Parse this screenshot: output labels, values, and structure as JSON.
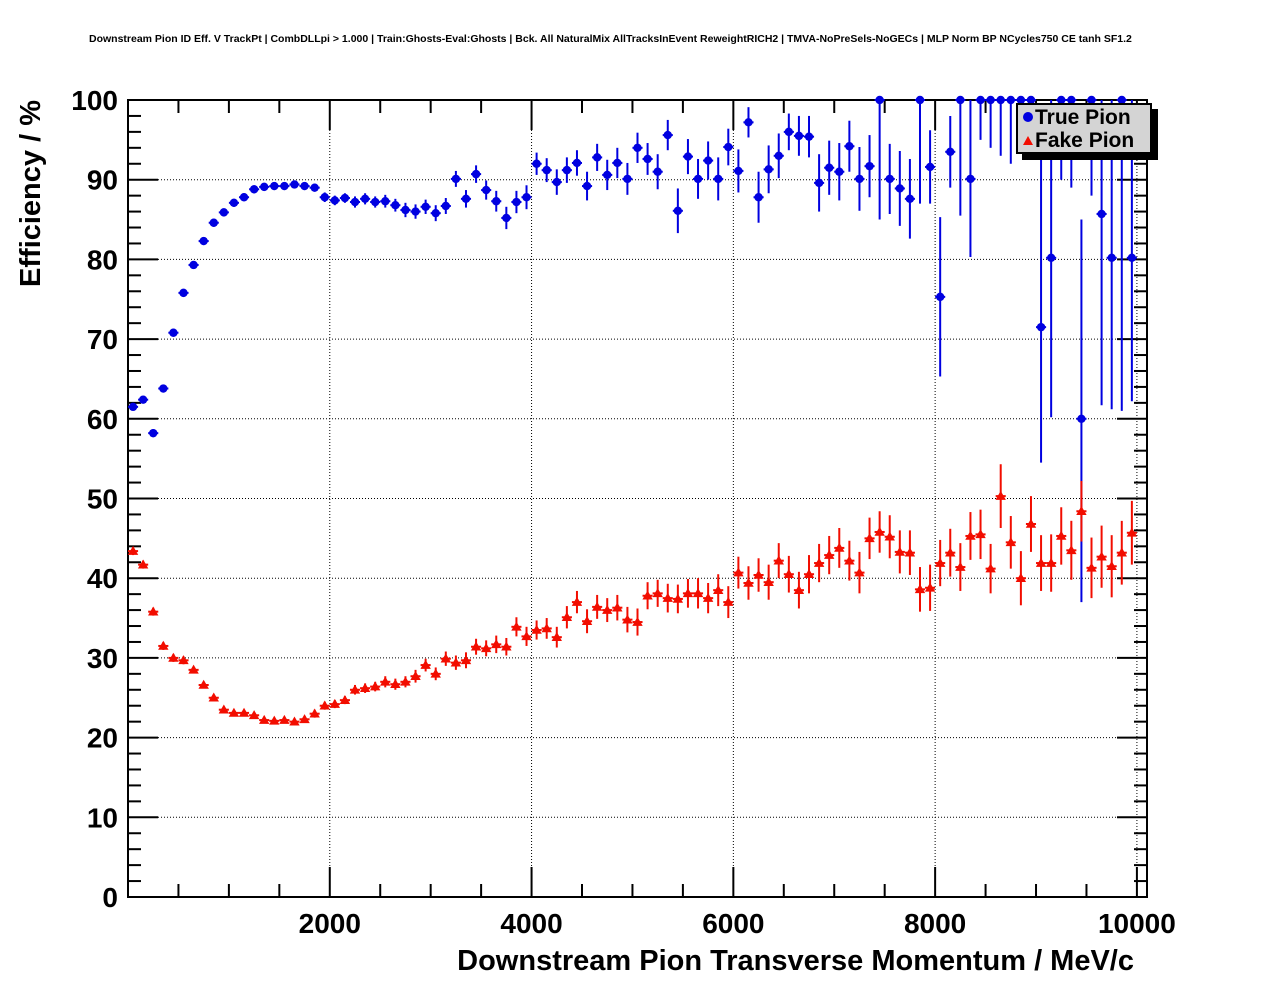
{
  "header": {
    "title": "Downstream Pion ID Eff. V TrackPt | CombDLLpi > 1.000 | Train:Ghosts-Eval:Ghosts | Bck. All NaturalMix AllTracksInEvent ReweightRICH2 | TMVA-NoPreSels-NoGECs | MLP Norm BP NCycles750 CE tanh SF1.2"
  },
  "axes": {
    "x_title": "Downstream Pion Transverse Momentum / MeV/c",
    "y_title": "Efficiency / %"
  },
  "legend": {
    "entries": [
      {
        "label": "True Pion",
        "marker": "circle",
        "color": "#0000e0"
      },
      {
        "label": "Fake Pion",
        "marker": "triangle",
        "color": "#f20d00"
      }
    ]
  },
  "chart_data": {
    "type": "scatter",
    "title": "Downstream Pion ID Eff. V TrackPt | CombDLLpi > 1.000 | Train:Ghosts-Eval:Ghosts | Bck. All NaturalMix AllTracksInEvent ReweightRICH2 | TMVA-NoPreSels-NoGECs | MLP Norm BP NCycles750 CE tanh SF1.2",
    "xlabel": "Downstream Pion Transverse Momentum / MeV/c",
    "ylabel": "Efficiency / %",
    "xlim": [
      0,
      10100
    ],
    "ylim": [
      0,
      100
    ],
    "x_ticks": [
      2000,
      4000,
      6000,
      8000,
      10000
    ],
    "y_ticks": [
      0,
      10,
      20,
      30,
      40,
      50,
      60,
      70,
      80,
      90,
      100
    ],
    "x_minor_step": 500,
    "y_minor_step": 2,
    "grid": true,
    "legend_position": "top-right",
    "bin_half_width": 50,
    "marker_note": "points are [pt_MeV, efficiency_pct, err_low, optional err_high]",
    "series": [
      {
        "name": "True Pion",
        "marker": "circle",
        "color": "#0000e0",
        "points": [
          [
            50,
            61.5,
            0.4
          ],
          [
            150,
            62.4,
            0.4
          ],
          [
            250,
            58.2,
            0.5
          ],
          [
            350,
            63.8,
            0.5
          ],
          [
            450,
            70.8,
            0.5
          ],
          [
            550,
            75.8,
            0.5
          ],
          [
            650,
            79.3,
            0.5
          ],
          [
            750,
            82.3,
            0.5
          ],
          [
            850,
            84.6,
            0.5
          ],
          [
            950,
            85.9,
            0.5
          ],
          [
            1050,
            87.1,
            0.5
          ],
          [
            1150,
            87.8,
            0.5
          ],
          [
            1250,
            88.8,
            0.5
          ],
          [
            1350,
            89.1,
            0.5
          ],
          [
            1450,
            89.2,
            0.5
          ],
          [
            1550,
            89.2,
            0.5
          ],
          [
            1650,
            89.4,
            0.5
          ],
          [
            1750,
            89.2,
            0.5
          ],
          [
            1850,
            89.0,
            0.5
          ],
          [
            1950,
            87.8,
            0.6
          ],
          [
            2050,
            87.4,
            0.6
          ],
          [
            2150,
            87.7,
            0.6
          ],
          [
            2250,
            87.2,
            0.7
          ],
          [
            2350,
            87.6,
            0.7
          ],
          [
            2450,
            87.2,
            0.7
          ],
          [
            2550,
            87.3,
            0.8
          ],
          [
            2650,
            86.8,
            0.8
          ],
          [
            2750,
            86.2,
            0.9
          ],
          [
            2850,
            86.0,
            0.9
          ],
          [
            2950,
            86.6,
            0.9
          ],
          [
            3050,
            85.8,
            1.0
          ],
          [
            3150,
            86.7,
            1.0
          ],
          [
            3250,
            90.1,
            1.0
          ],
          [
            3350,
            87.6,
            1.1
          ],
          [
            3450,
            90.7,
            1.1
          ],
          [
            3550,
            88.7,
            1.2
          ],
          [
            3650,
            87.3,
            1.3
          ],
          [
            3750,
            85.2,
            1.4
          ],
          [
            3850,
            87.2,
            1.4
          ],
          [
            3950,
            87.8,
            1.5
          ],
          [
            4050,
            92.0,
            1.4
          ],
          [
            4150,
            91.2,
            1.5
          ],
          [
            4250,
            89.7,
            1.6
          ],
          [
            4350,
            91.2,
            1.6
          ],
          [
            4450,
            92.1,
            1.6
          ],
          [
            4550,
            89.2,
            1.8
          ],
          [
            4650,
            92.8,
            1.7
          ],
          [
            4750,
            90.6,
            1.9
          ],
          [
            4850,
            92.1,
            1.9
          ],
          [
            4950,
            90.1,
            2.0
          ],
          [
            5050,
            94.0,
            1.9
          ],
          [
            5150,
            92.6,
            2.0
          ],
          [
            5250,
            91.0,
            2.2
          ],
          [
            5350,
            95.6,
            1.9
          ],
          [
            5450,
            86.1,
            2.8
          ],
          [
            5550,
            92.9,
            2.2
          ],
          [
            5650,
            90.1,
            2.5
          ],
          [
            5750,
            92.4,
            2.4
          ],
          [
            5850,
            90.1,
            2.7
          ],
          [
            5950,
            94.1,
            2.3
          ],
          [
            6050,
            91.1,
            2.7
          ],
          [
            6150,
            97.2,
            1.9
          ],
          [
            6250,
            87.8,
            3.2
          ],
          [
            6350,
            91.3,
            3.0
          ],
          [
            6450,
            93.0,
            2.8
          ],
          [
            6550,
            96.0,
            2.3
          ],
          [
            6650,
            95.5,
            2.5
          ],
          [
            6750,
            95.4,
            2.6
          ],
          [
            6850,
            89.6,
            3.6
          ],
          [
            6950,
            91.5,
            3.4
          ],
          [
            7050,
            91.0,
            3.6
          ],
          [
            7150,
            94.2,
            3.2
          ],
          [
            7250,
            90.1,
            4.0
          ],
          [
            7350,
            91.7,
            3.9
          ],
          [
            7450,
            100,
            15,
            0
          ],
          [
            7550,
            90.1,
            4.4
          ],
          [
            7650,
            88.9,
            4.7
          ],
          [
            7750,
            87.6,
            5.0
          ],
          [
            7850,
            100,
            13,
            0
          ],
          [
            7950,
            91.6,
            4.6
          ],
          [
            8050,
            75.3,
            10
          ],
          [
            8150,
            93.5,
            4.5
          ],
          [
            8250,
            100,
            14.5,
            0
          ],
          [
            8350,
            90.1,
            9.8,
            9.9
          ],
          [
            8450,
            100,
            5,
            0
          ],
          [
            8550,
            100,
            6,
            0
          ],
          [
            8650,
            100,
            7,
            0
          ],
          [
            8750,
            100,
            8,
            0
          ],
          [
            8850,
            100,
            6.5,
            0
          ],
          [
            8950,
            100,
            7.5,
            0
          ],
          [
            9050,
            71.5,
            17,
            28
          ],
          [
            9150,
            80.2,
            20,
            19.8
          ],
          [
            9250,
            100,
            10,
            0
          ],
          [
            9350,
            100,
            11,
            0
          ],
          [
            9450,
            60.0,
            23,
            25
          ],
          [
            9550,
            100,
            12,
            0
          ],
          [
            9650,
            85.7,
            24,
            14.3
          ],
          [
            9750,
            80.2,
            19,
            19.8
          ],
          [
            9850,
            100,
            39,
            0
          ],
          [
            9950,
            80.2,
            18,
            19.8
          ]
        ]
      },
      {
        "name": "Fake Pion",
        "marker": "triangle",
        "color": "#f20d00",
        "points": [
          [
            50,
            43.4,
            0.5
          ],
          [
            150,
            41.7,
            0.5
          ],
          [
            250,
            35.8,
            0.5
          ],
          [
            350,
            31.5,
            0.5
          ],
          [
            450,
            30.0,
            0.5
          ],
          [
            550,
            29.7,
            0.5
          ],
          [
            650,
            28.5,
            0.4
          ],
          [
            750,
            26.6,
            0.4
          ],
          [
            850,
            25.0,
            0.4
          ],
          [
            950,
            23.5,
            0.4
          ],
          [
            1050,
            23.1,
            0.4
          ],
          [
            1150,
            23.1,
            0.4
          ],
          [
            1250,
            22.8,
            0.4
          ],
          [
            1350,
            22.2,
            0.4
          ],
          [
            1450,
            22.1,
            0.4
          ],
          [
            1550,
            22.2,
            0.4
          ],
          [
            1650,
            22.0,
            0.4
          ],
          [
            1750,
            22.3,
            0.4
          ],
          [
            1850,
            23.0,
            0.5
          ],
          [
            1950,
            24.0,
            0.5
          ],
          [
            2050,
            24.2,
            0.5
          ],
          [
            2150,
            24.7,
            0.5
          ],
          [
            2250,
            26.0,
            0.6
          ],
          [
            2350,
            26.2,
            0.6
          ],
          [
            2450,
            26.4,
            0.6
          ],
          [
            2550,
            27.0,
            0.7
          ],
          [
            2650,
            26.7,
            0.7
          ],
          [
            2750,
            27.0,
            0.7
          ],
          [
            2850,
            27.7,
            0.8
          ],
          [
            2950,
            29.1,
            0.8
          ],
          [
            3050,
            28.0,
            0.8
          ],
          [
            3150,
            29.9,
            0.9
          ],
          [
            3250,
            29.4,
            0.9
          ],
          [
            3350,
            29.7,
            1.0
          ],
          [
            3450,
            31.4,
            1.0
          ],
          [
            3550,
            31.2,
            1.0
          ],
          [
            3650,
            31.7,
            1.1
          ],
          [
            3750,
            31.4,
            1.1
          ],
          [
            3850,
            33.9,
            1.2
          ],
          [
            3950,
            32.7,
            1.2
          ],
          [
            4050,
            33.5,
            1.2
          ],
          [
            4150,
            33.7,
            1.3
          ],
          [
            4250,
            32.6,
            1.3
          ],
          [
            4350,
            35.1,
            1.4
          ],
          [
            4450,
            37.0,
            1.4
          ],
          [
            4550,
            34.6,
            1.5
          ],
          [
            4650,
            36.4,
            1.5
          ],
          [
            4750,
            36.0,
            1.5
          ],
          [
            4850,
            36.3,
            1.6
          ],
          [
            4950,
            34.8,
            1.6
          ],
          [
            5050,
            34.5,
            1.7
          ],
          [
            5150,
            37.8,
            1.7
          ],
          [
            5250,
            38.1,
            1.7
          ],
          [
            5350,
            37.5,
            1.8
          ],
          [
            5450,
            37.4,
            1.8
          ],
          [
            5550,
            38.1,
            1.8
          ],
          [
            5650,
            38.1,
            1.9
          ],
          [
            5750,
            37.5,
            1.9
          ],
          [
            5850,
            38.5,
            2.0
          ],
          [
            5950,
            37.0,
            2.0
          ],
          [
            6050,
            40.7,
            2.0
          ],
          [
            6150,
            39.4,
            2.1
          ],
          [
            6250,
            40.4,
            2.1
          ],
          [
            6350,
            39.5,
            2.2
          ],
          [
            6450,
            42.2,
            2.2
          ],
          [
            6550,
            40.5,
            2.3
          ],
          [
            6650,
            38.5,
            2.3
          ],
          [
            6750,
            40.5,
            2.4
          ],
          [
            6850,
            41.9,
            2.4
          ],
          [
            6950,
            42.9,
            2.4
          ],
          [
            7050,
            43.8,
            2.5
          ],
          [
            7150,
            42.2,
            2.5
          ],
          [
            7250,
            40.7,
            2.6
          ],
          [
            7350,
            45.0,
            2.6
          ],
          [
            7450,
            45.8,
            2.6
          ],
          [
            7550,
            45.2,
            2.7
          ],
          [
            7650,
            43.3,
            2.7
          ],
          [
            7750,
            43.2,
            2.8
          ],
          [
            7850,
            38.6,
            2.8
          ],
          [
            7950,
            38.8,
            2.9
          ],
          [
            8050,
            41.9,
            2.9
          ],
          [
            8150,
            43.2,
            3.0
          ],
          [
            8250,
            41.4,
            3.0
          ],
          [
            8350,
            45.3,
            3.0
          ],
          [
            8450,
            45.5,
            3.1
          ],
          [
            8550,
            41.2,
            3.1
          ],
          [
            8650,
            50.3,
            4.0
          ],
          [
            8750,
            44.5,
            3.3
          ],
          [
            8850,
            40.0,
            3.4
          ],
          [
            8950,
            46.8,
            3.5
          ],
          [
            9050,
            41.9,
            3.5
          ],
          [
            9150,
            41.9,
            3.6
          ],
          [
            9250,
            45.3,
            3.6
          ],
          [
            9350,
            43.5,
            3.7
          ],
          [
            9450,
            48.4,
            3.8
          ],
          [
            9550,
            41.3,
            3.8
          ],
          [
            9650,
            42.7,
            3.9
          ],
          [
            9750,
            41.5,
            3.9
          ],
          [
            9850,
            43.2,
            4.0
          ],
          [
            9950,
            45.7,
            4.0
          ]
        ]
      }
    ]
  }
}
